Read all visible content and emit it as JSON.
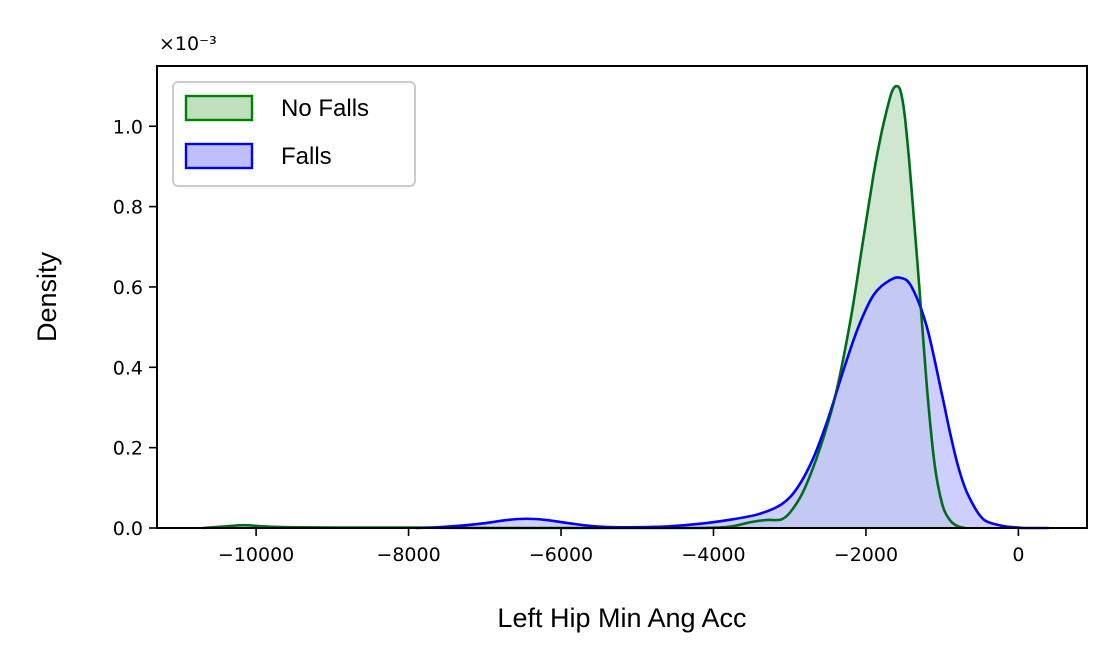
{
  "chart_data": {
    "type": "area",
    "title": "",
    "xlabel": "Left Hip Min Ang Acc",
    "ylabel": "Density",
    "y_scale_label": "×10⁻³",
    "xlim": [
      -11300,
      900
    ],
    "ylim": [
      0,
      1.15
    ],
    "x_ticks": [
      -10000,
      -8000,
      -6000,
      -4000,
      -2000,
      0
    ],
    "x_tick_labels": [
      "−10000",
      "−8000",
      "−6000",
      "−4000",
      "−2000",
      "0"
    ],
    "y_ticks": [
      0.0,
      0.2,
      0.4,
      0.6,
      0.8,
      1.0
    ],
    "y_tick_labels": [
      "0.0",
      "0.2",
      "0.4",
      "0.6",
      "0.8",
      "1.0"
    ],
    "grid": false,
    "legend_position": "top-left",
    "series": [
      {
        "name": "No Falls",
        "color": "#008000",
        "fill": "#bfdfbf",
        "x": [
          -10700,
          -10400,
          -10150,
          -9900,
          -9600,
          -9000,
          -8000,
          -7000,
          -6000,
          -5000,
          -4200,
          -3800,
          -3500,
          -3300,
          -3100,
          -2950,
          -2800,
          -2600,
          -2400,
          -2200,
          -2050,
          -1900,
          -1800,
          -1700,
          -1650,
          -1600,
          -1550,
          -1500,
          -1450,
          -1400,
          -1300,
          -1200,
          -1100,
          -1000,
          -900,
          -800,
          -700
        ],
        "values": [
          0.0,
          0.004,
          0.007,
          0.004,
          0.002,
          0.001,
          0.001,
          0.0,
          0.0,
          0.0,
          0.0,
          0.003,
          0.015,
          0.02,
          0.022,
          0.05,
          0.1,
          0.2,
          0.33,
          0.52,
          0.7,
          0.88,
          0.98,
          1.06,
          1.09,
          1.1,
          1.09,
          1.04,
          0.95,
          0.84,
          0.6,
          0.35,
          0.16,
          0.06,
          0.02,
          0.005,
          0.0
        ]
      },
      {
        "name": "Falls",
        "color": "#0000ff",
        "fill": "#bfbfff",
        "x": [
          -7900,
          -7600,
          -7300,
          -7000,
          -6700,
          -6450,
          -6200,
          -5900,
          -5600,
          -5300,
          -5000,
          -4600,
          -4200,
          -3800,
          -3400,
          -3100,
          -2900,
          -2700,
          -2500,
          -2300,
          -2100,
          -1900,
          -1700,
          -1550,
          -1400,
          -1200,
          -1000,
          -900,
          -800,
          -700,
          -600,
          -500,
          -400,
          -200,
          0,
          100,
          400
        ],
        "values": [
          0.0,
          0.002,
          0.006,
          0.012,
          0.02,
          0.023,
          0.02,
          0.012,
          0.005,
          0.002,
          0.002,
          0.004,
          0.01,
          0.02,
          0.035,
          0.06,
          0.1,
          0.17,
          0.27,
          0.39,
          0.5,
          0.58,
          0.615,
          0.623,
          0.6,
          0.5,
          0.33,
          0.24,
          0.16,
          0.1,
          0.06,
          0.03,
          0.015,
          0.005,
          0.001,
          0.0,
          0.0
        ]
      }
    ]
  }
}
